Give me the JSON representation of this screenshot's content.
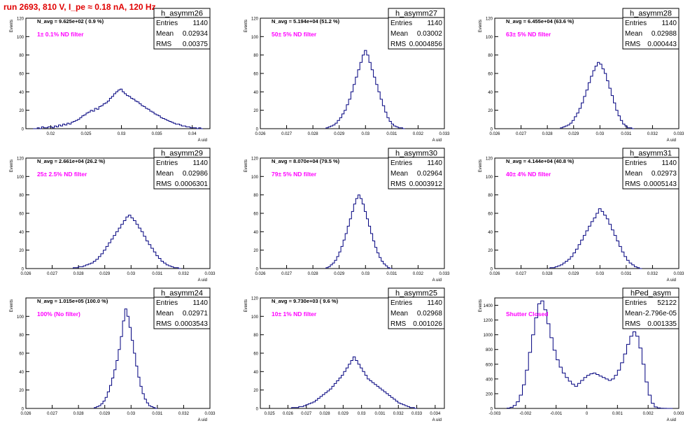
{
  "run_title": "run 2693,   810 V, I_pe ≈ 0.18 nA, 120 Hz",
  "colors": {
    "line": "#00007f",
    "navg": "#000000",
    "filter": "#ff00ff",
    "title": "#e00000"
  },
  "chart_data": [
    {
      "type": "bar",
      "title": "h_asymm26",
      "ylabel": "Events",
      "xlabel": "A uid",
      "n_avg": "N_avg = 9.625e+02 ( 0.9 %)",
      "filter": "1± 0.1% ND filter",
      "stats": {
        "entries": "1140",
        "mean": "0.02934",
        "rms": "0.00375"
      },
      "xlim": [
        0.0165,
        0.0425
      ],
      "ylim": [
        0,
        120
      ],
      "xticks": [
        0.02,
        0.025,
        0.03,
        0.035,
        0.04
      ],
      "xticklabels": [
        "0.02",
        "0.025",
        "0.03",
        "0.035",
        "0.04"
      ],
      "yticks": [
        0,
        20,
        40,
        60,
        80,
        100,
        120
      ],
      "hist": {
        "lo": 0.0175,
        "hi": 0.0415,
        "values": [
          0,
          0,
          1,
          0,
          2,
          1,
          1,
          2,
          2,
          1,
          3,
          2,
          4,
          3,
          5,
          4,
          6,
          5,
          7,
          8,
          9,
          10,
          12,
          14,
          15,
          17,
          18,
          20,
          19,
          22,
          21,
          24,
          25,
          27,
          28,
          30,
          33,
          35,
          38,
          40,
          42,
          43,
          40,
          38,
          36,
          35,
          33,
          32,
          30,
          29,
          27,
          25,
          24,
          22,
          21,
          19,
          18,
          16,
          15,
          14,
          12,
          11,
          10,
          9,
          8,
          7,
          6,
          5,
          5,
          4,
          3,
          3,
          2,
          2,
          1,
          1,
          1,
          0,
          1,
          0
        ]
      }
    },
    {
      "type": "bar",
      "title": "h_asymm27",
      "ylabel": "Events",
      "xlabel": "A uid",
      "n_avg": "N_avg = 5.194e+04 (51.2 %)",
      "filter": "50± 5% ND filter",
      "stats": {
        "entries": "1140",
        "mean": "0.03002",
        "rms": "0.0004856"
      },
      "xlim": [
        0.026,
        0.033
      ],
      "ylim": [
        0,
        120
      ],
      "xticks": [
        0.026,
        0.027,
        0.028,
        0.029,
        0.03,
        0.031,
        0.032,
        0.033
      ],
      "xticklabels": [
        "0.026",
        "0.027",
        "0.028",
        "0.029",
        "0.03",
        "0.031",
        "0.032",
        "0.033"
      ],
      "yticks": [
        0,
        20,
        40,
        60,
        80,
        100,
        120
      ],
      "hist": {
        "lo": 0.0285,
        "hi": 0.0315,
        "values": [
          1,
          2,
          3,
          4,
          6,
          9,
          12,
          16,
          20,
          26,
          32,
          40,
          48,
          56,
          64,
          72,
          80,
          85,
          80,
          72,
          64,
          56,
          48,
          40,
          32,
          25,
          18,
          12,
          8,
          5,
          3,
          2,
          1,
          1,
          0
        ]
      }
    },
    {
      "type": "bar",
      "title": "h_asymm28",
      "ylabel": "Events",
      "xlabel": "A uid",
      "n_avg": "N_avg = 6.455e+04 (63.6 %)",
      "filter": "63± 5% ND filter",
      "stats": {
        "entries": "1140",
        "mean": "0.02988",
        "rms": "0.000443"
      },
      "xlim": [
        0.026,
        0.033
      ],
      "ylim": [
        0,
        120
      ],
      "xticks": [
        0.026,
        0.027,
        0.028,
        0.029,
        0.03,
        0.031,
        0.032,
        0.033
      ],
      "xticklabels": [
        "0.026",
        "0.027",
        "0.028",
        "0.029",
        "0.03",
        "0.031",
        "0.032",
        "0.033"
      ],
      "yticks": [
        0,
        20,
        40,
        60,
        80,
        100,
        120
      ],
      "hist": {
        "lo": 0.0285,
        "hi": 0.0313,
        "values": [
          1,
          2,
          3,
          4,
          6,
          9,
          13,
          17,
          22,
          28,
          35,
          42,
          50,
          57,
          63,
          68,
          72,
          70,
          65,
          60,
          52,
          44,
          36,
          28,
          20,
          14,
          9,
          5,
          3,
          1,
          1,
          0
        ]
      }
    },
    {
      "type": "bar",
      "title": "h_asymm29",
      "ylabel": "Events",
      "xlabel": "A uid",
      "n_avg": "N_avg = 2.661e+04 (26.2 %)",
      "filter": "25± 2.5% ND filter",
      "stats": {
        "entries": "1140",
        "mean": "0.02986",
        "rms": "0.0006301"
      },
      "xlim": [
        0.026,
        0.033
      ],
      "ylim": [
        0,
        120
      ],
      "xticks": [
        0.026,
        0.027,
        0.028,
        0.029,
        0.03,
        0.031,
        0.032,
        0.033
      ],
      "xticklabels": [
        "0.026",
        "0.027",
        "0.028",
        "0.029",
        "0.03",
        "0.031",
        "0.032",
        "0.033"
      ],
      "yticks": [
        0,
        20,
        40,
        60,
        80,
        100,
        120
      ],
      "hist": {
        "lo": 0.0278,
        "hi": 0.0319,
        "values": [
          1,
          1,
          2,
          2,
          3,
          4,
          5,
          6,
          8,
          10,
          13,
          16,
          20,
          24,
          28,
          32,
          36,
          40,
          44,
          48,
          52,
          56,
          58,
          55,
          52,
          48,
          44,
          40,
          35,
          30,
          26,
          22,
          18,
          14,
          11,
          8,
          6,
          4,
          3,
          2,
          1,
          1,
          0
        ]
      }
    },
    {
      "type": "bar",
      "title": "h_asymm30",
      "ylabel": "Events",
      "xlabel": "A uid",
      "n_avg": "N_avg = 8.070e+04 (79.5 %)",
      "filter": "79± 5% ND filter",
      "stats": {
        "entries": "1140",
        "mean": "0.02964",
        "rms": "0.0003912"
      },
      "xlim": [
        0.026,
        0.033
      ],
      "ylim": [
        0,
        120
      ],
      "xticks": [
        0.026,
        0.027,
        0.028,
        0.029,
        0.03,
        0.031,
        0.032,
        0.033
      ],
      "xticklabels": [
        "0.026",
        "0.027",
        "0.028",
        "0.029",
        "0.03",
        "0.031",
        "0.032",
        "0.033"
      ],
      "yticks": [
        0,
        20,
        40,
        60,
        80,
        100,
        120
      ],
      "hist": {
        "lo": 0.0285,
        "hi": 0.031,
        "values": [
          1,
          2,
          4,
          6,
          9,
          13,
          18,
          24,
          31,
          38,
          46,
          54,
          62,
          70,
          76,
          80,
          76,
          70,
          62,
          54,
          46,
          38,
          30,
          23,
          17,
          12,
          8,
          5,
          3,
          1,
          0
        ]
      }
    },
    {
      "type": "bar",
      "title": "h_asymm31",
      "ylabel": "Events",
      "xlabel": "A uid",
      "n_avg": "N_avg = 4.144e+04 (40.8 %)",
      "filter": "40± 4% ND filter",
      "stats": {
        "entries": "1140",
        "mean": "0.02973",
        "rms": "0.0005143"
      },
      "xlim": [
        0.026,
        0.033
      ],
      "ylim": [
        0,
        120
      ],
      "xticks": [
        0.026,
        0.027,
        0.028,
        0.029,
        0.03,
        0.031,
        0.032,
        0.033
      ],
      "xticklabels": [
        "0.026",
        "0.027",
        "0.028",
        "0.029",
        "0.03",
        "0.031",
        "0.032",
        "0.033"
      ],
      "yticks": [
        0,
        20,
        40,
        60,
        80,
        100,
        120
      ],
      "hist": {
        "lo": 0.0281,
        "hi": 0.0316,
        "values": [
          1,
          1,
          2,
          3,
          4,
          6,
          8,
          10,
          13,
          17,
          21,
          26,
          31,
          36,
          41,
          46,
          51,
          55,
          60,
          65,
          62,
          58,
          54,
          48,
          42,
          36,
          30,
          24,
          18,
          13,
          9,
          6,
          4,
          2,
          1,
          0
        ]
      }
    },
    {
      "type": "bar",
      "title": "h_asymm24",
      "ylabel": "Events",
      "xlabel": "A uid",
      "n_avg": "N_avg = 1.015e+05 (100.0 %)",
      "filter": "100% (No filter)",
      "stats": {
        "entries": "1140",
        "mean": "0.02971",
        "rms": "0.0003543"
      },
      "xlim": [
        0.026,
        0.033
      ],
      "ylim": [
        0,
        120
      ],
      "xticks": [
        0.026,
        0.027,
        0.028,
        0.029,
        0.03,
        0.031,
        0.032,
        0.033
      ],
      "xticklabels": [
        "0.026",
        "0.027",
        "0.028",
        "0.029",
        "0.03",
        "0.031",
        "0.032",
        "0.033"
      ],
      "yticks": [
        0,
        20,
        40,
        60,
        80,
        100
      ],
      "hist": {
        "lo": 0.0286,
        "hi": 0.031,
        "values": [
          1,
          2,
          3,
          5,
          8,
          12,
          18,
          25,
          33,
          42,
          52,
          64,
          78,
          95,
          108,
          100,
          88,
          74,
          60,
          46,
          34,
          24,
          16,
          10,
          6,
          3,
          2,
          1,
          0
        ]
      }
    },
    {
      "type": "bar",
      "title": "h_asymm25",
      "ylabel": "Events",
      "xlabel": "A uid",
      "n_avg": "N_avg = 9.730e+03 ( 9.6 %)",
      "filter": "10± 1% ND filter",
      "stats": {
        "entries": "1140",
        "mean": "0.02968",
        "rms": "0.001026"
      },
      "xlim": [
        0.0245,
        0.0345
      ],
      "ylim": [
        0,
        120
      ],
      "xticks": [
        0.025,
        0.026,
        0.027,
        0.028,
        0.029,
        0.03,
        0.031,
        0.032,
        0.033,
        0.034
      ],
      "xticklabels": [
        "0.025",
        "0.026",
        "0.027",
        "0.028",
        "0.029",
        "0.03",
        "0.031",
        "0.032",
        "0.033",
        "0.034"
      ],
      "yticks": [
        0,
        20,
        40,
        60,
        80,
        100,
        120
      ],
      "hist": {
        "lo": 0.0262,
        "hi": 0.033,
        "values": [
          1,
          1,
          1,
          2,
          2,
          3,
          4,
          5,
          6,
          7,
          9,
          11,
          13,
          15,
          17,
          19,
          21,
          24,
          27,
          30,
          33,
          36,
          40,
          44,
          48,
          52,
          56,
          52,
          48,
          44,
          40,
          36,
          32,
          30,
          28,
          26,
          24,
          22,
          20,
          18,
          16,
          14,
          12,
          10,
          8,
          6,
          5,
          4,
          3,
          2,
          1,
          1,
          0
        ]
      }
    },
    {
      "type": "bar",
      "title": "hPed_asym",
      "ylabel": "Events",
      "xlabel": "A uid",
      "n_avg": "",
      "filter": "Shutter Closed",
      "stats": {
        "entries": "52122",
        "mean": "-2.796e-05",
        "rms": "0.001335"
      },
      "xlim": [
        -0.003,
        0.003
      ],
      "ylim": [
        0,
        1500
      ],
      "xticks": [
        -0.003,
        -0.002,
        -0.001,
        0,
        0.001,
        0.002,
        0.003
      ],
      "xticklabels": [
        "-0.003",
        "-0.002",
        "-0.001",
        "0",
        "0.001",
        "0.002",
        "0.003"
      ],
      "yticks": [
        0,
        200,
        400,
        600,
        800,
        1000,
        1200,
        1400
      ],
      "hist": {
        "lo": -0.0026,
        "hi": 0.0028,
        "values": [
          5,
          15,
          40,
          90,
          180,
          320,
          520,
          760,
          1000,
          1230,
          1420,
          1460,
          1340,
          1150,
          960,
          790,
          660,
          560,
          480,
          420,
          370,
          330,
          300,
          340,
          380,
          420,
          450,
          470,
          480,
          460,
          440,
          420,
          400,
          380,
          400,
          450,
          520,
          620,
          740,
          870,
          980,
          1040,
          980,
          820,
          600,
          360,
          180,
          70,
          20,
          8,
          3,
          1,
          0,
          0
        ]
      }
    }
  ]
}
